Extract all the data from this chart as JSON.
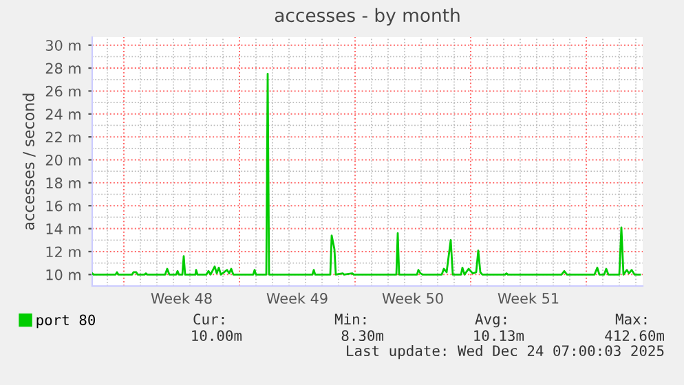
{
  "chart_data": {
    "type": "line",
    "title": "accesses - by month",
    "ylabel": "accesses / second",
    "x": [
      "2025-11-22T02:00",
      "2025-11-22T04:00",
      "2025-11-23T12:00",
      "2025-11-23T14:00",
      "2025-11-23T16:00",
      "2025-11-24T12:00",
      "2025-11-24T14:00",
      "2025-11-24T18:00",
      "2025-11-24T20:00",
      "2025-11-25T06:00",
      "2025-11-25T08:00",
      "2025-11-25T10:00",
      "2025-11-26T12:00",
      "2025-11-26T15:00",
      "2025-11-26T18:00",
      "2025-11-27T04:00",
      "2025-11-27T06:00",
      "2025-11-27T08:00",
      "2025-11-27T13:00",
      "2025-11-27T15:00",
      "2025-11-27T17:00",
      "2025-11-28T08:00",
      "2025-11-28T09:00",
      "2025-11-28T11:00",
      "2025-11-29T00:00",
      "2025-11-29T03:00",
      "2025-11-29T06:00",
      "2025-11-29T12:00",
      "2025-11-29T15:00",
      "2025-11-29T18:00",
      "2025-11-29T21:00",
      "2025-11-30T06:00",
      "2025-11-30T09:00",
      "2025-11-30T12:00",
      "2025-11-30T15:00",
      "2025-12-01T20:00",
      "2025-12-01T22:00",
      "2025-12-02T00:00",
      "2025-12-02T15:00",
      "2025-12-02T17:00",
      "2025-12-02T19:00",
      "2025-12-05T10:00",
      "2025-12-05T12:00",
      "2025-12-05T14:00",
      "2025-12-06T12:00",
      "2025-12-06T14:00",
      "2025-12-06T18:00",
      "2025-12-06T20:00",
      "2025-12-07T06:00",
      "2025-12-07T08:00",
      "2025-12-07T20:00",
      "2025-12-07T22:00",
      "2025-12-10T12:00",
      "2025-12-10T14:00",
      "2025-12-10T16:00",
      "2025-12-11T18:00",
      "2025-12-11T20:00",
      "2025-12-11T23:00",
      "2025-12-12T02:00",
      "2025-12-13T06:00",
      "2025-12-13T09:00",
      "2025-12-13T13:00",
      "2025-12-13T19:00",
      "2025-12-13T22:00",
      "2025-12-14T10:00",
      "2025-12-14T12:00",
      "2025-12-14T15:00",
      "2025-12-14T21:00",
      "2025-12-15T03:00",
      "2025-12-15T08:00",
      "2025-12-15T11:00",
      "2025-12-15T14:00",
      "2025-12-15T17:00",
      "2025-12-17T02:00",
      "2025-12-17T04:00",
      "2025-12-17T06:00",
      "2025-12-20T12:00",
      "2025-12-20T16:00",
      "2025-12-20T20:00",
      "2025-12-22T12:00",
      "2025-12-22T16:00",
      "2025-12-22T19:00",
      "2025-12-23T02:00",
      "2025-12-23T05:00",
      "2025-12-23T08:00",
      "2025-12-24T00:00",
      "2025-12-24T03:00",
      "2025-12-24T06:00",
      "2025-12-24T11:00",
      "2025-12-24T14:00",
      "2025-12-24T18:00",
      "2025-12-24T22:00",
      "2025-12-25T06:00"
    ],
    "series": [
      {
        "name": "port 80",
        "color": "#00cc00",
        "values": [
          10.1,
          10.0,
          10.0,
          10.2,
          10.0,
          10.0,
          10.2,
          10.2,
          10.0,
          10.0,
          10.1,
          10.0,
          10.0,
          10.5,
          10.0,
          10.0,
          10.3,
          10.0,
          10.0,
          11.6,
          10.0,
          10.0,
          10.4,
          10.0,
          10.0,
          10.3,
          10.0,
          10.7,
          10.1,
          10.6,
          10.0,
          10.4,
          10.1,
          10.5,
          10.0,
          10.0,
          10.4,
          10.0,
          10.0,
          27.5,
          10.0,
          10.0,
          10.4,
          10.0,
          10.0,
          13.4,
          12.2,
          10.0,
          10.1,
          10.0,
          10.1,
          10.0,
          10.0,
          13.6,
          10.0,
          10.0,
          10.4,
          10.1,
          10.0,
          10.0,
          10.5,
          10.2,
          13.0,
          10.0,
          10.0,
          10.6,
          10.0,
          10.5,
          10.1,
          10.2,
          12.1,
          10.2,
          10.0,
          10.0,
          10.1,
          10.0,
          10.0,
          10.3,
          10.0,
          10.0,
          10.6,
          10.0,
          10.0,
          10.5,
          10.0,
          10.0,
          14.1,
          10.0,
          10.4,
          10.1,
          10.4,
          10.0,
          10.0
        ]
      }
    ],
    "xlim": [
      "2025-11-22T02:00",
      "2025-12-25T10:00"
    ],
    "xticks": [
      {
        "value": "2025-11-24",
        "label": null
      },
      {
        "value": "2025-11-27T12:00",
        "label": "Week 48"
      },
      {
        "value": "2025-12-01",
        "label": null
      },
      {
        "value": "2025-12-04T12:00",
        "label": "Week 49"
      },
      {
        "value": "2025-12-08",
        "label": null
      },
      {
        "value": "2025-12-11T12:00",
        "label": "Week 50"
      },
      {
        "value": "2025-12-15",
        "label": null
      },
      {
        "value": "2025-12-18T12:00",
        "label": "Week 51"
      },
      {
        "value": "2025-12-22",
        "label": null
      }
    ],
    "ylim": [
      9,
      30.7
    ],
    "yticks": [
      {
        "value": 10,
        "label": "10 m"
      },
      {
        "value": 12,
        "label": "12 m"
      },
      {
        "value": 14,
        "label": "14 m"
      },
      {
        "value": 16,
        "label": "16 m"
      },
      {
        "value": 18,
        "label": "18 m"
      },
      {
        "value": 20,
        "label": "20 m"
      },
      {
        "value": 22,
        "label": "22 m"
      },
      {
        "value": 24,
        "label": "24 m"
      },
      {
        "value": 26,
        "label": "26 m"
      },
      {
        "value": 28,
        "label": "28 m"
      },
      {
        "value": 30,
        "label": "30 m"
      }
    ],
    "grid": true,
    "legend": "bottom left",
    "marker": "none",
    "line_style": "solid",
    "annotations": [
      "Cur:",
      "Min:",
      "Avg:",
      "Max:",
      "10.00m",
      "8.30m",
      "10.13m",
      "412.60m",
      "Last update: Wed Dec 24 07:00:03 2025"
    ]
  }
}
